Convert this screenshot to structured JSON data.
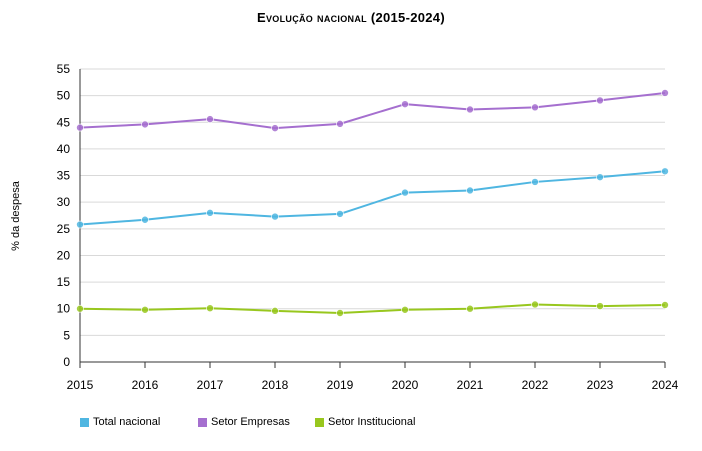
{
  "chart_data": {
    "type": "line",
    "title": "Evolução nacional (2015-2024)",
    "xlabel": "",
    "ylabel": "% da despesa",
    "ylim": [
      0,
      55
    ],
    "yticks": [
      0,
      5,
      10,
      15,
      20,
      25,
      30,
      35,
      40,
      45,
      50,
      55
    ],
    "grid": true,
    "legend_position": "bottom-left",
    "categories": [
      "2015",
      "2016",
      "2017",
      "2018",
      "2019",
      "2020",
      "2021",
      "2022",
      "2023",
      "2024"
    ],
    "series": [
      {
        "name": "Total nacional",
        "color": "#4fb6e1",
        "values": [
          25.8,
          26.7,
          28.0,
          27.3,
          27.8,
          31.8,
          32.2,
          33.8,
          34.7,
          35.8
        ]
      },
      {
        "name": "Setor Empresas",
        "color": "#a56fcf",
        "values": [
          44.0,
          44.6,
          45.6,
          43.9,
          44.7,
          48.4,
          47.4,
          47.8,
          49.1,
          50.5
        ]
      },
      {
        "name": "Setor Institucional",
        "color": "#98c71e",
        "values": [
          10.0,
          9.8,
          10.1,
          9.6,
          9.2,
          9.8,
          10.0,
          10.8,
          10.5,
          10.7
        ]
      }
    ]
  }
}
